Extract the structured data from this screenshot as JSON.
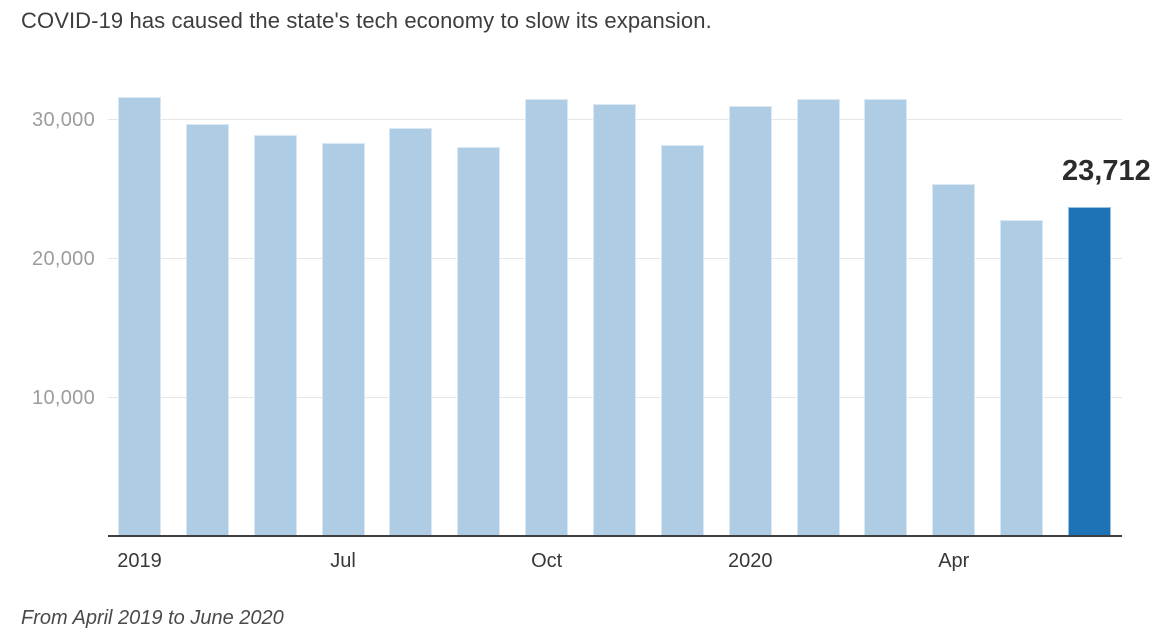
{
  "title": "COVID-19 has caused the state's tech economy to slow its expansion.",
  "footnote": "From April 2019 to June 2020",
  "chart_data": {
    "type": "bar",
    "title": "COVID-19 has caused the state's tech economy to slow its expansion.",
    "subtitle": "From April 2019 to June 2020",
    "categories": [
      "Apr 2019",
      "May 2019",
      "Jun 2019",
      "Jul 2019",
      "Aug 2019",
      "Sep 2019",
      "Oct 2019",
      "Nov 2019",
      "Dec 2019",
      "Jan 2020",
      "Feb 2020",
      "Mar 2020",
      "Apr 2020",
      "May 2020",
      "Jun 2020"
    ],
    "values": [
      31600,
      29700,
      28900,
      28300,
      29400,
      28000,
      31500,
      31100,
      28200,
      31000,
      31500,
      31500,
      25400,
      22800,
      23712
    ],
    "highlight_index": 14,
    "highlight_label": "23,712",
    "x_tick_labels": [
      {
        "label": "2019",
        "index": 0
      },
      {
        "label": "Jul",
        "index": 3
      },
      {
        "label": "Oct",
        "index": 6
      },
      {
        "label": "2020",
        "index": 9
      },
      {
        "label": "Apr",
        "index": 12
      }
    ],
    "y_ticks": [
      {
        "label": "10,000",
        "value": 10000
      },
      {
        "label": "20,000",
        "value": 20000
      },
      {
        "label": "30,000",
        "value": 30000
      }
    ],
    "ylim": [
      0,
      32200
    ],
    "grid": "horizontal",
    "legend": "none",
    "colors": {
      "bar": "#aecde4",
      "bar_highlight": "#1d73b5",
      "gridline": "#e6e6e6",
      "axis_line": "#3f3f3f",
      "y_tick_text": "#9c9c9c",
      "x_tick_text": "#383838",
      "value_label_text": "#2b2b2b"
    }
  }
}
